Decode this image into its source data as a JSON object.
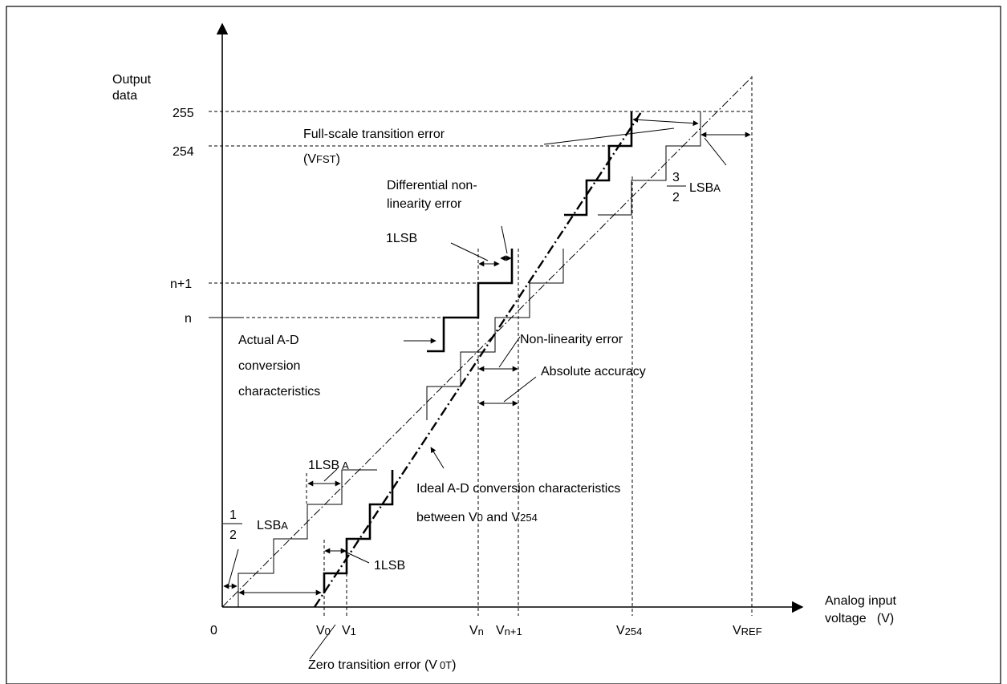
{
  "axes": {
    "y_title_line1": "Output",
    "y_title_line2": "data",
    "x_title_line1": "Analog input",
    "x_title_line2": "voltage   (V)",
    "origin": "0"
  },
  "y_ticks": {
    "t255": "255",
    "t254": "254",
    "tn1": "n+1",
    "tn": "n"
  },
  "x_ticks": {
    "v0": {
      "main": "V",
      "sub": "0"
    },
    "v1": {
      "main": "V",
      "sub": "1"
    },
    "vn": {
      "main": "V",
      "sub": "n"
    },
    "vn1": {
      "main": "V",
      "sub": "n+1"
    },
    "v254": {
      "main": "V",
      "sub": "254"
    },
    "vref": {
      "main": "V",
      "sub": "REF"
    }
  },
  "labels": {
    "full_scale_line1": "Full-scale transition error",
    "full_scale_line2_open": "(V",
    "full_scale_line2_sub": "FST",
    "full_scale_line2_close": ")",
    "differential_line1": "Differential non-",
    "differential_line2": "linearity error",
    "one_lsb": "1LSB",
    "actual_line1": "Actual A-D",
    "actual_line2": "conversion",
    "actual_line3": "characteristics",
    "nonlinearity": "Non-linearity error",
    "absolute": "Absolute accuracy",
    "one_lsb_a_main": "1LSB",
    "one_lsb_a_sub": "A",
    "half_num": "1",
    "half_den": "2",
    "lsb_a_main": "LSB",
    "lsb_a_sub": "A",
    "three_half_num": "3",
    "three_half_den": "2",
    "ideal_line1": "Ideal A-D conversion characteristics",
    "ideal_line2_a": "between V",
    "ideal_line2_sub0": "0",
    "ideal_line2_b": " and V",
    "ideal_line2_sub254": "254",
    "one_lsb_low": "1LSB",
    "zero_trans_main": "Zero transition error (V",
    "zero_trans_sub": "0T",
    "zero_trans_close": ")"
  }
}
